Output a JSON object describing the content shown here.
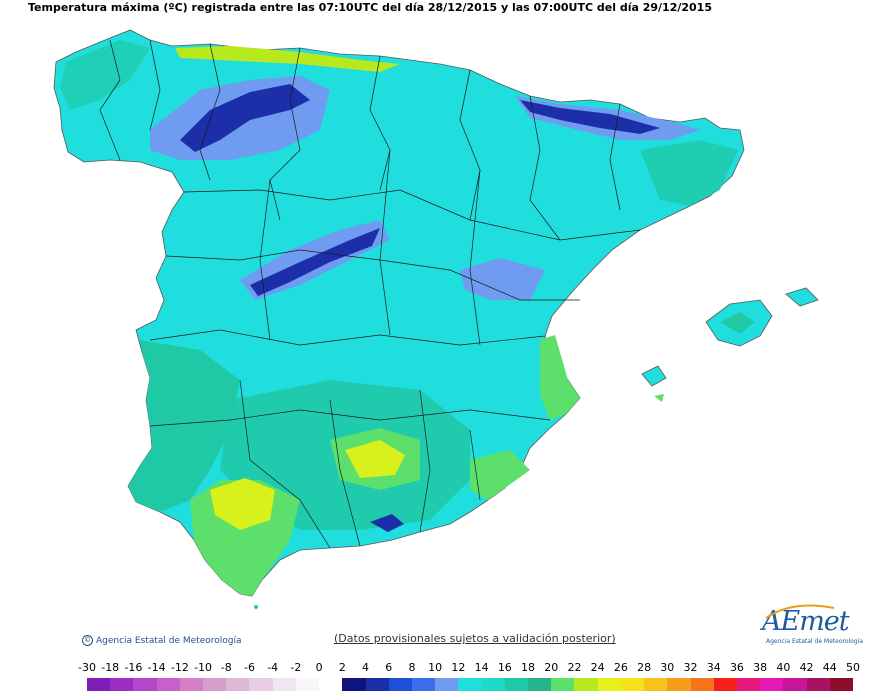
{
  "title": "Temperatura máxima (ºC) registrada entre las 07:10UTC del día 28/12/2015 y las 07:00UTC del día 29/12/2015",
  "credit": "Agencia Estatal de Meteorología",
  "note": "(Datos provisionales sujetos a validación posterior)",
  "logo": {
    "name": "AEmet",
    "subtitle": "Agencia Estatal de Meteorología"
  },
  "legend": {
    "labels": [
      "-30",
      "-18",
      "-16",
      "-14",
      "-12",
      "-10",
      "-8",
      "-6",
      "-4",
      "-2",
      "0",
      "2",
      "4",
      "6",
      "8",
      "10",
      "12",
      "14",
      "16",
      "18",
      "20",
      "22",
      "24",
      "26",
      "28",
      "30",
      "32",
      "34",
      "36",
      "38",
      "40",
      "42",
      "44",
      "50"
    ],
    "colors": [
      "#7e1fb8",
      "#9b2cc4",
      "#b645c9",
      "#c860c9",
      "#d47fc7",
      "#d49ec9",
      "#dcb8d6",
      "#e6cfe2",
      "#f0e6f0",
      "#f6f6fb",
      "#ffffff",
      "#12127d",
      "#1c2fa8",
      "#1f4fd6",
      "#3d6de8",
      "#6f9bf0",
      "#21dede",
      "#1ed9c8",
      "#1fc9a6",
      "#24b38a",
      "#5ce06b",
      "#b8e81e",
      "#e8f01c",
      "#f7e11b",
      "#f7c31b",
      "#f79d1b",
      "#f7731b",
      "#f4201c",
      "#e8187c",
      "#e619b4",
      "#c7169c",
      "#a81360",
      "#8b0f2d"
    ]
  },
  "map_colors": {
    "base": "#21dede",
    "teal": "#1fc9a6",
    "green": "#5ce06b",
    "yellow": "#d8f01c",
    "cold1": "#6f9bf0",
    "cold2": "#1c2fa8",
    "cold3": "#12127d",
    "border": "#1a1a1a"
  }
}
